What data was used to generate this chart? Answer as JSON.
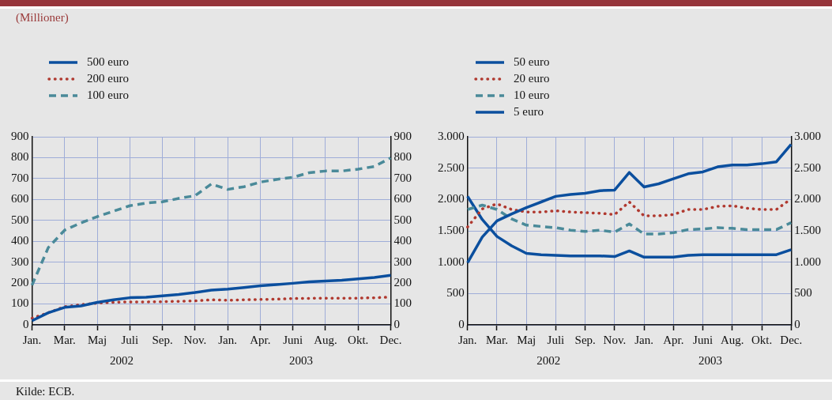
{
  "chart_data": [
    {
      "type": "line",
      "subtitle": "(Millioner)",
      "categories": [
        "Jan.",
        null,
        "Mar.",
        null,
        "Maj",
        null,
        "Juli",
        null,
        "Sep.",
        null,
        "Nov.",
        null,
        "Jan.",
        null,
        "Apr.",
        null,
        "Juni",
        null,
        "Aug.",
        null,
        "Okt.",
        null,
        "Dec."
      ],
      "series": [
        {
          "name": "500 euro",
          "color": "#0b4f9e",
          "line_style": "solid",
          "values": [
            20,
            58,
            84,
            91,
            108,
            120,
            130,
            132,
            139,
            146,
            155,
            166,
            171,
            179,
            187,
            193,
            199,
            206,
            210,
            214,
            220,
            227,
            237
          ]
        },
        {
          "name": "200 euro",
          "color": "#b0392f",
          "line_style": "dotted",
          "values": [
            32,
            58,
            87,
            97,
            104,
            108,
            110,
            110,
            111,
            113,
            115,
            120,
            118,
            120,
            122,
            123,
            126,
            127,
            128,
            128,
            128,
            130,
            133
          ]
        },
        {
          "name": "100 euro",
          "color": "#4a8a99",
          "line_style": "dashed",
          "values": [
            190,
            370,
            453,
            488,
            518,
            544,
            570,
            583,
            589,
            605,
            618,
            674,
            648,
            661,
            683,
            696,
            706,
            728,
            736,
            736,
            745,
            758,
            799
          ]
        }
      ],
      "ylim": [
        0,
        900
      ],
      "yticks": [
        0,
        100,
        200,
        300,
        400,
        500,
        600,
        700,
        800,
        900
      ],
      "y2lim": [
        0,
        900
      ],
      "y2ticks": [
        0,
        100,
        200,
        300,
        400,
        500,
        600,
        700,
        800,
        900
      ],
      "annotations": [
        "2002",
        "2003"
      ],
      "grid": true,
      "legend": "top left"
    },
    {
      "type": "line",
      "categories": [
        "Jan.",
        null,
        "Mar.",
        null,
        "Maj",
        null,
        "Juli",
        null,
        "Sep.",
        null,
        "Nov.",
        null,
        "Jan.",
        null,
        "Apr.",
        null,
        "Juni",
        null,
        "Aug.",
        null,
        "Okt.",
        null,
        "Dec."
      ],
      "series": [
        {
          "name": "50 euro",
          "color": "#0b4f9e",
          "line_style": "solid",
          "values": [
            990,
            1400,
            1660,
            1770,
            1870,
            1960,
            2050,
            2080,
            2100,
            2140,
            2150,
            2430,
            2200,
            2250,
            2330,
            2410,
            2440,
            2520,
            2550,
            2550,
            2570,
            2600,
            2880
          ]
        },
        {
          "name": "20 euro",
          "color": "#b0392f",
          "line_style": "dotted",
          "values": [
            1560,
            1850,
            1930,
            1840,
            1800,
            1800,
            1820,
            1800,
            1790,
            1780,
            1760,
            1960,
            1740,
            1740,
            1760,
            1840,
            1840,
            1890,
            1900,
            1860,
            1840,
            1840,
            2010
          ]
        },
        {
          "name": "10 euro",
          "color": "#4a8a99",
          "line_style": "dashed",
          "values": [
            1840,
            1910,
            1840,
            1690,
            1590,
            1570,
            1550,
            1510,
            1490,
            1510,
            1480,
            1610,
            1450,
            1450,
            1470,
            1520,
            1530,
            1550,
            1540,
            1520,
            1520,
            1520,
            1630
          ]
        },
        {
          "name": "5 euro",
          "color": "#0b4f9e",
          "line_style": "solid",
          "values": [
            2050,
            1680,
            1410,
            1260,
            1140,
            1120,
            1110,
            1100,
            1100,
            1100,
            1090,
            1180,
            1080,
            1080,
            1080,
            1110,
            1120,
            1120,
            1120,
            1120,
            1120,
            1120,
            1200
          ]
        }
      ],
      "ylim": [
        0,
        3000
      ],
      "yticks": [
        0,
        500,
        {
          "value": 1000,
          "label": "1.000"
        },
        {
          "value": 1500,
          "label": "1.500"
        },
        {
          "value": 2000,
          "label": "2.000"
        },
        {
          "value": 2500,
          "label": "2.500"
        },
        {
          "value": 3000,
          "label": "3.000"
        }
      ],
      "y2lim": [
        0,
        3000
      ],
      "y2ticks": [
        0,
        500,
        {
          "value": 1000,
          "label": "1.000"
        },
        {
          "value": 1500,
          "label": "1.500"
        },
        {
          "value": 2000,
          "label": "2.000"
        },
        {
          "value": 2500,
          "label": "2.500"
        },
        {
          "value": 3000,
          "label": "3.000"
        }
      ],
      "annotations": [
        "2002",
        "2003",
        "Kilde: ECB."
      ],
      "grid": true,
      "legend": "top left"
    }
  ]
}
